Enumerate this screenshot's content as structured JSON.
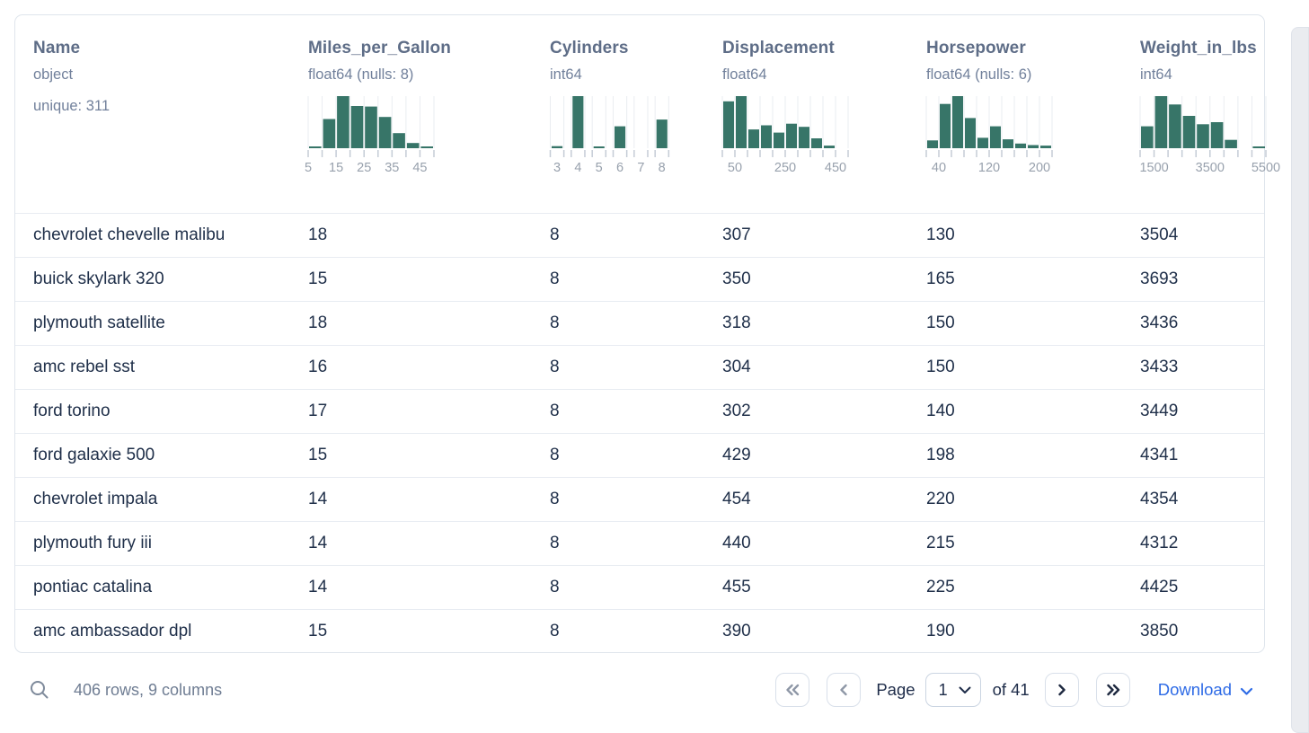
{
  "colors": {
    "histogram_bar": "#377568",
    "histogram_gridline": "#eaedf1",
    "histogram_tick": "#c5ccd6",
    "histogram_label": "#98a1ad",
    "accent_blue": "#2e6be6",
    "row_text": "#20304a",
    "header_text": "#5e6d87",
    "muted_text": "#71809b",
    "card_border": "#dfe5ec"
  },
  "table": {
    "columns": [
      {
        "name": "Name",
        "type": "object",
        "extra": "unique: 311",
        "histogram": null
      },
      {
        "name": "Miles_per_Gallon",
        "type": "float64 (nulls: 8)",
        "histogram": {
          "style": "contiguous",
          "bars": [
            3,
            56,
            100,
            81,
            80,
            60,
            29,
            10,
            2
          ],
          "labels": [
            {
              "text": "5",
              "edge": 0
            },
            {
              "text": "15",
              "edge": 2
            },
            {
              "text": "25",
              "edge": 4
            },
            {
              "text": "35",
              "edge": 6
            },
            {
              "text": "45",
              "edge": 8
            }
          ]
        }
      },
      {
        "name": "Cylinders",
        "type": "int64",
        "histogram": {
          "style": "spaced",
          "bars": [
            4,
            100,
            3,
            42,
            0,
            55
          ],
          "labels": [
            {
              "text": "3",
              "bin": 0
            },
            {
              "text": "4",
              "bin": 1
            },
            {
              "text": "5",
              "bin": 2
            },
            {
              "text": "6",
              "bin": 3
            },
            {
              "text": "7",
              "bin": 4
            },
            {
              "text": "8",
              "bin": 5
            }
          ]
        }
      },
      {
        "name": "Displacement",
        "type": "float64",
        "histogram": {
          "style": "contiguous",
          "bars": [
            90,
            100,
            36,
            44,
            30,
            47,
            41,
            19,
            5,
            0
          ],
          "labels": [
            {
              "text": "50",
              "edge": 1
            },
            {
              "text": "250",
              "edge": 5
            },
            {
              "text": "450",
              "edge": 9
            }
          ]
        }
      },
      {
        "name": "Horsepower",
        "type": "float64 (nulls: 6)",
        "histogram": {
          "style": "contiguous",
          "bars": [
            15,
            85,
            100,
            58,
            20,
            42,
            17,
            9,
            6,
            5
          ],
          "labels": [
            {
              "text": "40",
              "edge": 1
            },
            {
              "text": "120",
              "edge": 5
            },
            {
              "text": "200",
              "edge": 9
            }
          ]
        }
      },
      {
        "name": "Weight_in_lbs",
        "type": "int64",
        "histogram": {
          "style": "contiguous",
          "bars": [
            42,
            100,
            84,
            62,
            46,
            50,
            16,
            0,
            2
          ],
          "labels": [
            {
              "text": "1500",
              "edge": 1
            },
            {
              "text": "3500",
              "edge": 5
            },
            {
              "text": "5500",
              "edge": 9
            }
          ]
        }
      }
    ],
    "rows": [
      [
        "chevrolet chevelle malibu",
        "18",
        "8",
        "307",
        "130",
        "3504"
      ],
      [
        "buick skylark 320",
        "15",
        "8",
        "350",
        "165",
        "3693"
      ],
      [
        "plymouth satellite",
        "18",
        "8",
        "318",
        "150",
        "3436"
      ],
      [
        "amc rebel sst",
        "16",
        "8",
        "304",
        "150",
        "3433"
      ],
      [
        "ford torino",
        "17",
        "8",
        "302",
        "140",
        "3449"
      ],
      [
        "ford galaxie 500",
        "15",
        "8",
        "429",
        "198",
        "4341"
      ],
      [
        "chevrolet impala",
        "14",
        "8",
        "454",
        "220",
        "4354"
      ],
      [
        "plymouth fury iii",
        "14",
        "8",
        "440",
        "215",
        "4312"
      ],
      [
        "pontiac catalina",
        "14",
        "8",
        "455",
        "225",
        "4425"
      ],
      [
        "amc ambassador dpl",
        "15",
        "8",
        "390",
        "190",
        "3850"
      ]
    ]
  },
  "footer": {
    "summary": "406 rows, 9 columns",
    "page_label": "Page",
    "page_value": "1",
    "of_label": "of 41",
    "download_label": "Download"
  }
}
